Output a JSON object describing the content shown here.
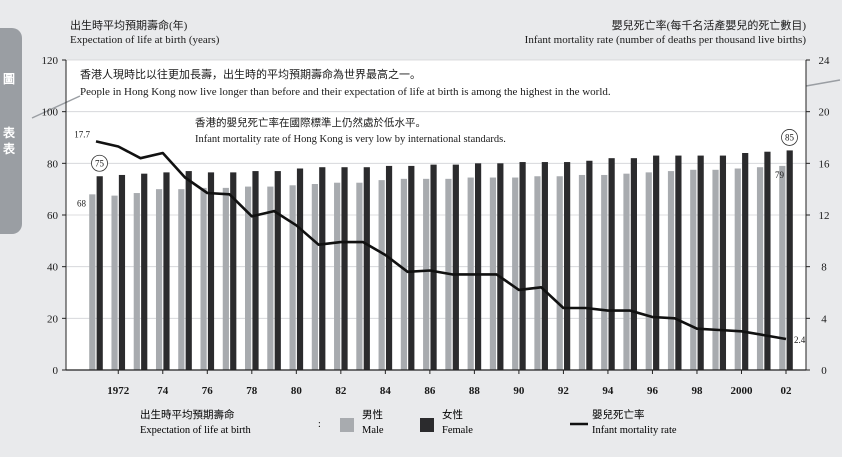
{
  "side_tab": {
    "glyphs": [
      "圖",
      "表",
      "表"
    ]
  },
  "header": {
    "left_title_zh": "出生時平均預期壽命(年)",
    "left_title_en": "Expectation of life at birth (years)",
    "right_title_zh": "嬰兒死亡率(每千名活產嬰兒的死亡數目)",
    "right_title_en": "Infant mortality rate (number of deaths per thousand live births)"
  },
  "annotations": {
    "top_zh": "香港人現時比以往更加長壽，出生時的平均預期壽命為世界最高之一。",
    "top_en": "People in Hong Kong now live longer than before and their expectation of life at birth is among the highest in the world.",
    "mid_zh": "香港的嬰兒死亡率在國際標準上仍然處於低水平。",
    "mid_en": "Infant mortality rate of Hong Kong is very low by international standards."
  },
  "legend": {
    "group_label_zh": "出生時平均預期壽命",
    "group_label_en": "Expectation of life at birth",
    "male_zh": "男性",
    "male_en": "Male",
    "female_zh": "女性",
    "female_en": "Female",
    "rate_zh": "嬰兒死亡率",
    "rate_en": "Infant mortality rate"
  },
  "colors": {
    "panel": "#ffffff",
    "male": "#a8abaf",
    "female": "#2b2b2d",
    "line": "#111111",
    "side_tab": "#9a9ea3",
    "background": "#e9eaec"
  },
  "chart_data": {
    "type": "bar",
    "x": [
      1971,
      1972,
      1973,
      1974,
      1975,
      1976,
      1977,
      1978,
      1979,
      1980,
      1981,
      1982,
      1983,
      1984,
      1985,
      1986,
      1987,
      1988,
      1989,
      1990,
      1991,
      1992,
      1993,
      1994,
      1995,
      1996,
      1997,
      1998,
      1999,
      2000,
      2001,
      2002
    ],
    "x_tick_labels": [
      "1972",
      "74",
      "76",
      "78",
      "80",
      "82",
      "84",
      "86",
      "88",
      "90",
      "92",
      "94",
      "96",
      "98",
      "2000",
      "02"
    ],
    "x_tick_years": [
      1972,
      1974,
      1976,
      1978,
      1980,
      1982,
      1984,
      1986,
      1988,
      1990,
      1992,
      1994,
      1996,
      1998,
      2000,
      2002
    ],
    "series": [
      {
        "name": "男性 Male",
        "kind": "bar",
        "axis": "left",
        "values": [
          68,
          67.5,
          68.5,
          70,
          70,
          70.5,
          70.5,
          71,
          71,
          71.5,
          72,
          72.5,
          72.5,
          73.5,
          74,
          74,
          74,
          74.5,
          74.5,
          74.5,
          75,
          75,
          75.5,
          75.5,
          76,
          76.5,
          77,
          77.5,
          77.5,
          78,
          78.5,
          79
        ]
      },
      {
        "name": "女性 Female",
        "kind": "bar",
        "axis": "left",
        "values": [
          75,
          75.5,
          76,
          76.5,
          77,
          76.5,
          76.5,
          77,
          77,
          78,
          78.5,
          78.5,
          78.5,
          79,
          79,
          79.5,
          79.5,
          80,
          80,
          80.5,
          80.5,
          80.5,
          81,
          82,
          82,
          83,
          83,
          83,
          83,
          84,
          84.5,
          85
        ]
      },
      {
        "name": "嬰兒死亡率 Infant mortality rate",
        "kind": "line",
        "axis": "right",
        "values": [
          17.7,
          17.3,
          16.4,
          16.8,
          14.9,
          13.7,
          13.6,
          11.9,
          12.3,
          11.2,
          9.7,
          9.9,
          9.9,
          8.9,
          7.6,
          7.7,
          7.4,
          7.4,
          7.4,
          6.2,
          6.4,
          4.8,
          4.8,
          4.6,
          4.6,
          4.1,
          4.0,
          3.2,
          3.1,
          3.0,
          2.7,
          2.4
        ]
      }
    ],
    "data_labels": [
      {
        "series": 0,
        "index": 0,
        "text": "68"
      },
      {
        "series": 1,
        "index": 0,
        "text": "75"
      },
      {
        "series": 2,
        "index": 0,
        "text": "17.7"
      },
      {
        "series": 0,
        "index": 31,
        "text": "79"
      },
      {
        "series": 1,
        "index": 31,
        "text": "85"
      },
      {
        "series": 2,
        "index": 31,
        "text": "2.4"
      }
    ],
    "y_left": {
      "min": 0,
      "max": 120,
      "ticks": [
        0,
        20,
        40,
        60,
        80,
        100,
        120
      ]
    },
    "y_right": {
      "min": 0,
      "max": 24,
      "ticks": [
        0,
        4,
        8,
        12,
        16,
        20,
        24
      ]
    },
    "grid": true,
    "legend_position": "bottom"
  }
}
